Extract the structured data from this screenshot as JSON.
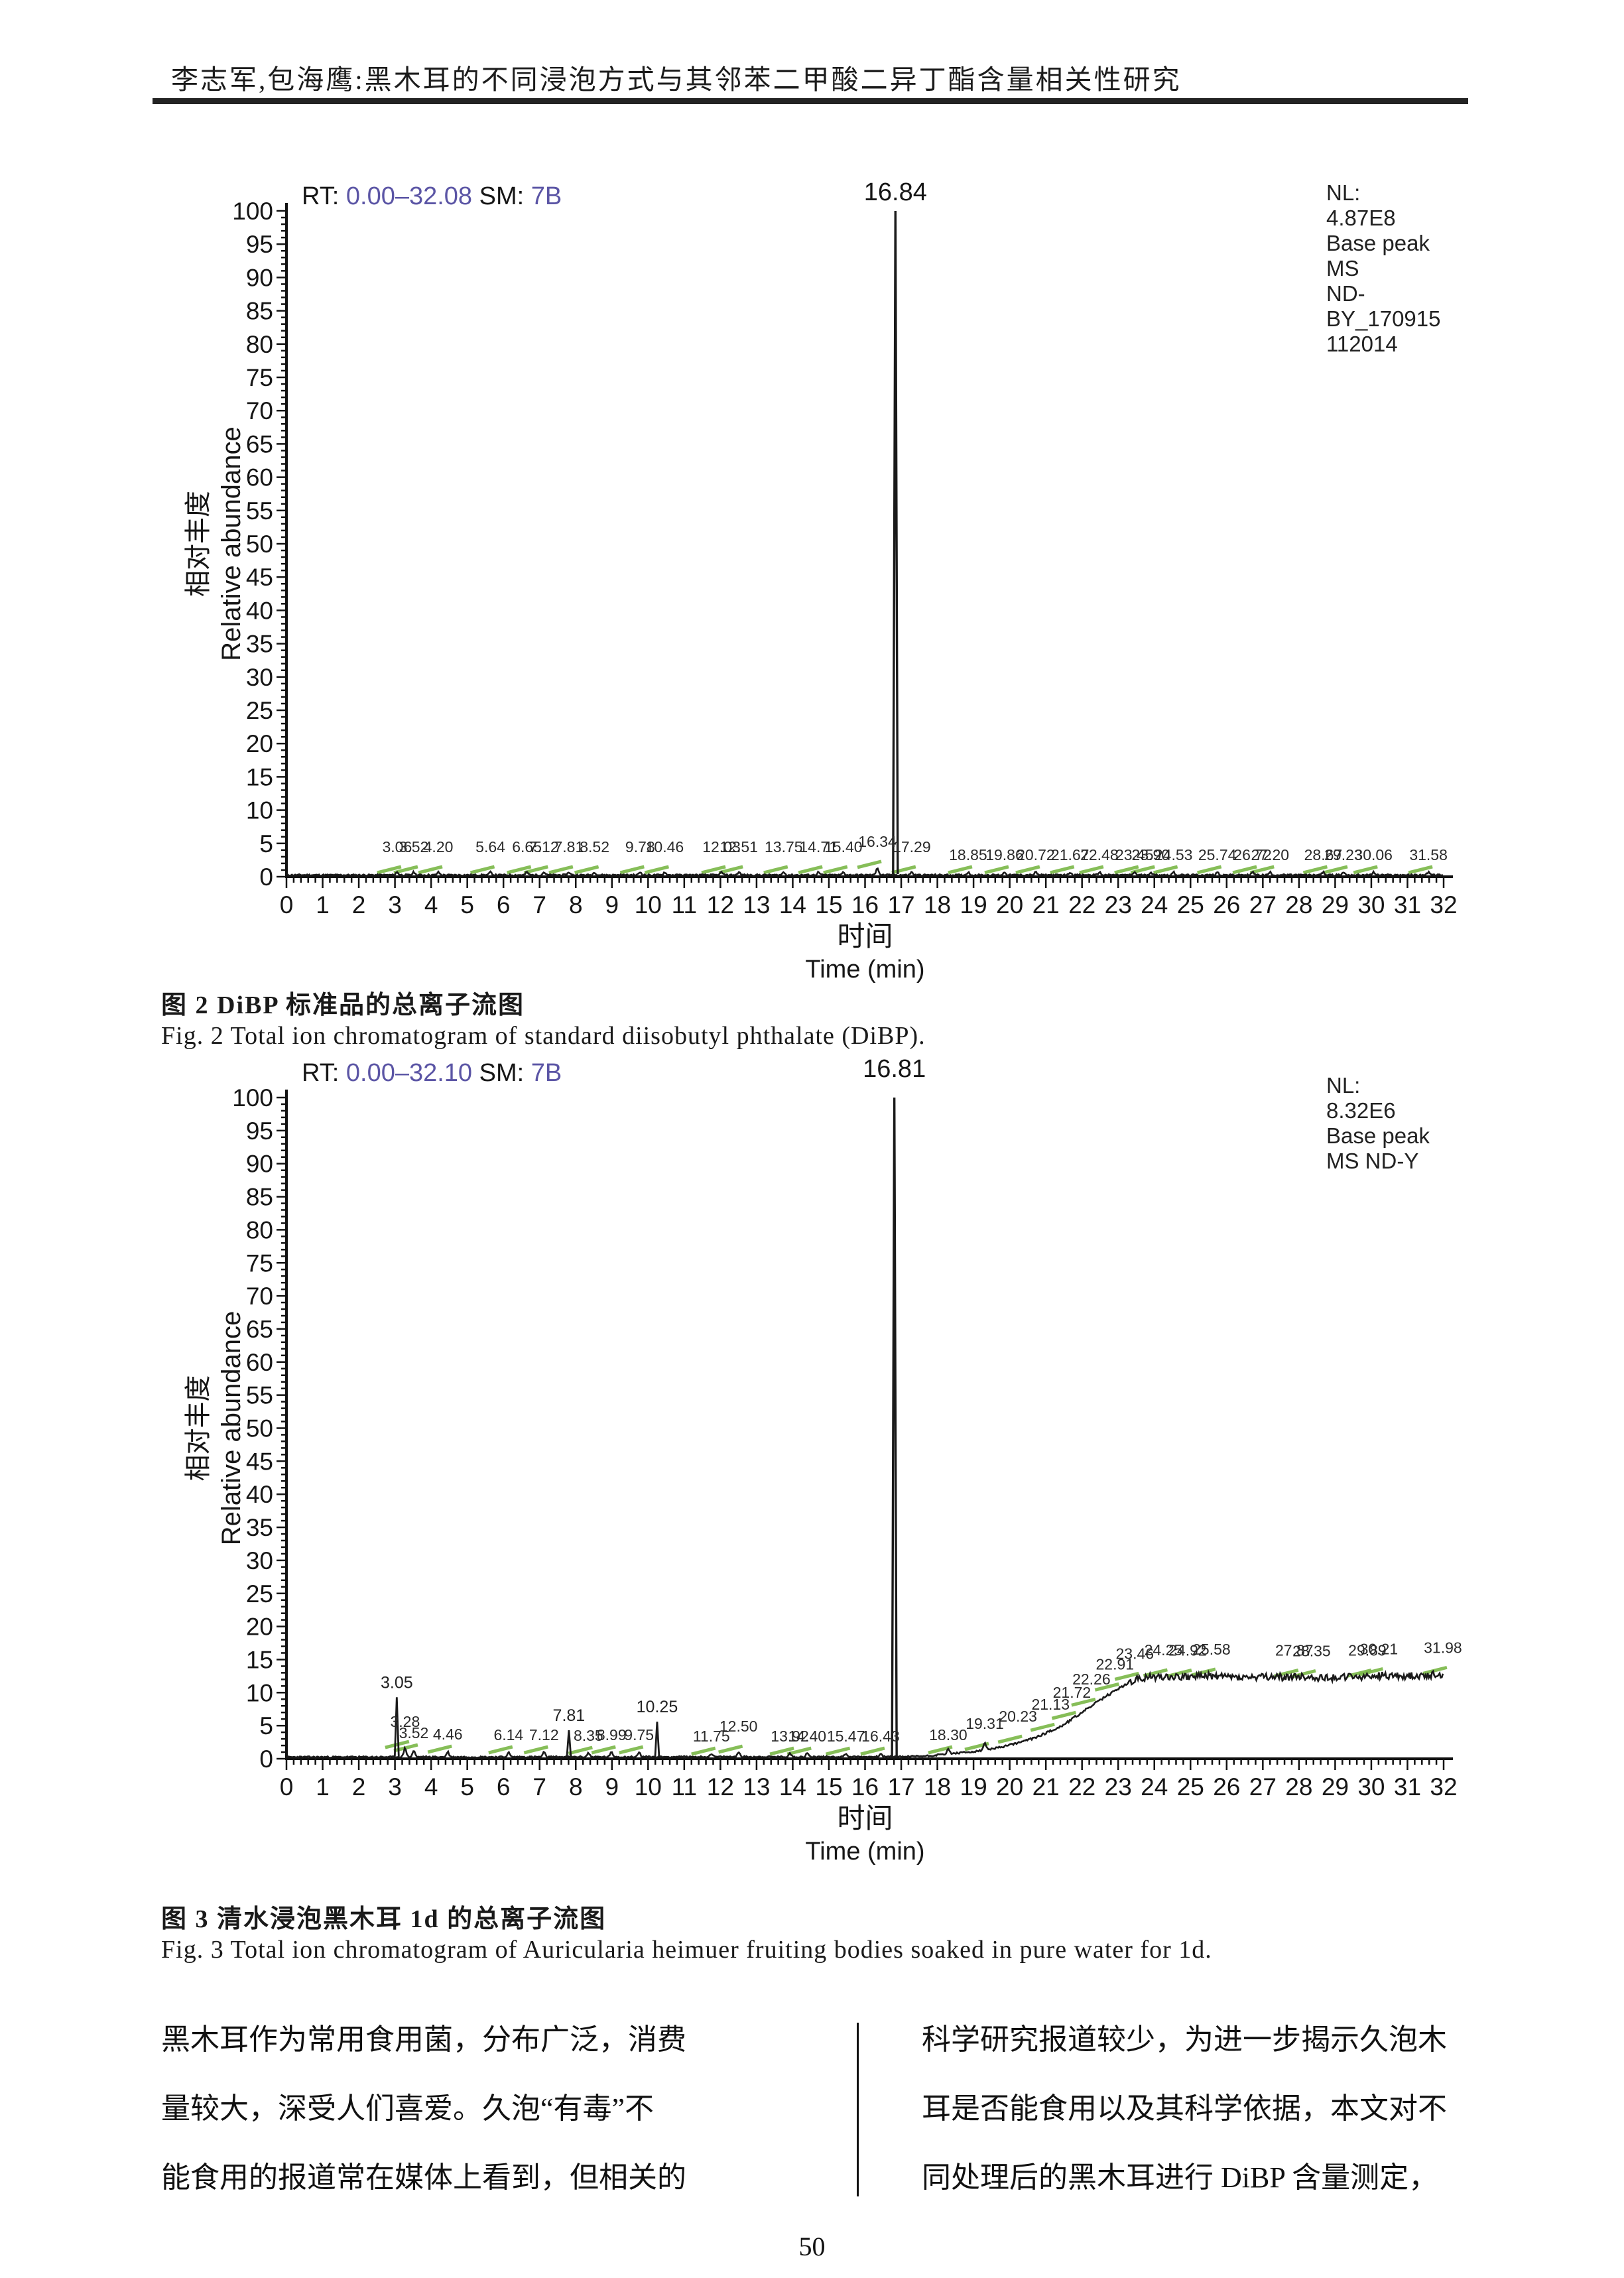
{
  "page": {
    "header": "李志军,包海鹰:黑木耳的不同浸泡方式与其邻苯二甲酸二异丁酯含量相关性研究",
    "page_number": "50"
  },
  "figure2": {
    "caption_cn": "图 2 DiBP 标准品的总离子流图",
    "caption_en": "Fig. 2 Total ion chromatogram of standard diisobutyl phthalate (DiBP)."
  },
  "figure3": {
    "caption_cn": "图 3 清水浸泡黑木耳 1d 的总离子流图",
    "caption_en": "Fig. 3 Total ion chromatogram of Auricularia heimuer fruiting bodies soaked in pure water for 1d."
  },
  "body_text": {
    "left_column": [
      "黑木耳作为常用食用菌，分布广泛，消费",
      "量较大，深受人们喜爱。久泡“有毒”不",
      "能食用的报道常在媒体上看到，但相关的"
    ],
    "right_column": [
      "科学研究报道较少，为进一步揭示久泡木",
      "耳是否能食用以及其科学依据，本文对不",
      "同处理后的黑木耳进行 DiBP 含量测定，"
    ]
  },
  "colors": {
    "rt_accent": "#5b55a5",
    "axis": "#111111",
    "trace": "#1a1a1a",
    "integration_mark": "#79b747"
  },
  "chart_data": [
    {
      "type": "line",
      "rt_label": "RT:",
      "rt_value": "0.00–32.08",
      "sm_label": "SM:",
      "sm_value": "7B",
      "nl_lines": [
        "NL:",
        "4.87E8",
        "Base peak",
        "MS",
        "ND-",
        "BY_170915",
        "112014"
      ],
      "main_peak": {
        "time": 16.84,
        "intensity": 100,
        "label": "16.84"
      },
      "labeled_peaks": [],
      "minor_peaks": [
        {
          "time": 3.06,
          "intensity": 0.5,
          "row": 0
        },
        {
          "time": 3.52,
          "intensity": 0.5,
          "row": 0
        },
        {
          "time": 4.2,
          "intensity": 0.5,
          "row": 0
        },
        {
          "time": 5.64,
          "intensity": 0.5,
          "row": 0
        },
        {
          "time": 6.65,
          "intensity": 0.5,
          "row": 0
        },
        {
          "time": 7.12,
          "intensity": 0.5,
          "row": 0
        },
        {
          "time": 7.81,
          "intensity": 0.5,
          "row": 0
        },
        {
          "time": 8.52,
          "intensity": 0.5,
          "row": 0
        },
        {
          "time": 9.78,
          "intensity": 0.5,
          "row": 0
        },
        {
          "time": 10.46,
          "intensity": 0.5,
          "row": 0
        },
        {
          "time": 12.03,
          "intensity": 0.5,
          "row": 0
        },
        {
          "time": 12.51,
          "intensity": 0.5,
          "row": 0
        },
        {
          "time": 13.75,
          "intensity": 0.5,
          "row": 0
        },
        {
          "time": 14.71,
          "intensity": 0.5,
          "row": 0
        },
        {
          "time": 15.4,
          "intensity": 0.5,
          "row": 0
        },
        {
          "time": 16.34,
          "intensity": 1.3,
          "row": 0
        },
        {
          "time": 17.29,
          "intensity": 0.5,
          "row": 0
        },
        {
          "time": 18.85,
          "intensity": 0.5,
          "row": 1
        },
        {
          "time": 19.86,
          "intensity": 0.5,
          "row": 1
        },
        {
          "time": 20.72,
          "intensity": 0.5,
          "row": 1
        },
        {
          "time": 21.67,
          "intensity": 0.5,
          "row": 1
        },
        {
          "time": 22.48,
          "intensity": 0.5,
          "row": 1
        },
        {
          "time": 23.45,
          "intensity": 0.5,
          "row": 1
        },
        {
          "time": 23.9,
          "intensity": 0.5,
          "row": 1
        },
        {
          "time": 24.53,
          "intensity": 0.5,
          "row": 1
        },
        {
          "time": 25.74,
          "intensity": 0.5,
          "row": 1
        },
        {
          "time": 26.72,
          "intensity": 0.5,
          "row": 1
        },
        {
          "time": 27.2,
          "intensity": 0.5,
          "row": 1
        },
        {
          "time": 28.67,
          "intensity": 0.5,
          "row": 1
        },
        {
          "time": 29.23,
          "intensity": 0.5,
          "row": 1
        },
        {
          "time": 30.06,
          "intensity": 0.5,
          "row": 1
        },
        {
          "time": 31.58,
          "intensity": 0.5,
          "row": 1
        }
      ],
      "profile": [
        [
          0,
          0.25
        ],
        [
          32,
          0.25
        ]
      ],
      "xlabel_cn": "时间",
      "xlabel_en": "Time (min)",
      "ylabel_cn": "相对丰度",
      "ylabel_en": "Relative abundance",
      "xlim": [
        0,
        32
      ],
      "ylim": [
        0,
        100
      ],
      "xtick_major": 1,
      "xtick_minor": 0.2,
      "ytick_major": 5,
      "ytick_minor": 1
    },
    {
      "type": "line",
      "rt_label": "RT:",
      "rt_value": "0.00–32.10",
      "sm_label": "SM:",
      "sm_value": "7B",
      "nl_lines": [
        "NL:",
        "8.32E6",
        "Base peak",
        "MS ND-Y"
      ],
      "main_peak": {
        "time": 16.81,
        "intensity": 100,
        "label": "16.81"
      },
      "labeled_peaks": [
        {
          "time": 3.05,
          "intensity": 9.3,
          "label": "3.05"
        },
        {
          "time": 7.81,
          "intensity": 4.3,
          "label": "7.81"
        },
        {
          "time": 10.25,
          "intensity": 5.6,
          "label": "10.25"
        }
      ],
      "minor_peaks": [
        {
          "time": 3.28,
          "intensity": 1.6,
          "row": 0
        },
        {
          "time": 3.52,
          "intensity": 1.1,
          "row": 1
        },
        {
          "time": 4.46,
          "intensity": 0.9,
          "row": 1
        },
        {
          "time": 6.14,
          "intensity": 0.8,
          "row": 1
        },
        {
          "time": 7.12,
          "intensity": 0.8,
          "row": 1
        },
        {
          "time": 8.35,
          "intensity": 0.7,
          "row": 1
        },
        {
          "time": 8.99,
          "intensity": 0.8,
          "row": 1
        },
        {
          "time": 9.75,
          "intensity": 0.8,
          "row": 1
        },
        {
          "time": 11.75,
          "intensity": 0.6,
          "row": 1
        },
        {
          "time": 12.5,
          "intensity": 0.9,
          "row": 0
        },
        {
          "time": 13.92,
          "intensity": 0.6,
          "row": 1
        },
        {
          "time": 14.4,
          "intensity": 0.6,
          "row": 1
        },
        {
          "time": 15.47,
          "intensity": 0.6,
          "row": 1
        },
        {
          "time": 16.43,
          "intensity": 0.6,
          "row": 1
        },
        {
          "time": 18.3,
          "intensity": 0.8,
          "row": 1
        },
        {
          "time": 19.31,
          "intensity": 1.3,
          "row": 0
        },
        {
          "time": 20.23,
          "intensity": 2.4,
          "row": 0
        },
        {
          "time": 21.13,
          "intensity": 4.2,
          "row": 0
        },
        {
          "time": 21.72,
          "intensity": 6.0,
          "row": 0
        },
        {
          "time": 22.26,
          "intensity": 8.0,
          "row": 0
        },
        {
          "time": 22.91,
          "intensity": 10.3,
          "row": 0
        },
        {
          "time": 23.46,
          "intensity": 11.9,
          "row": 0
        },
        {
          "time": 24.25,
          "intensity": 12.45,
          "row": 0
        },
        {
          "time": 24.92,
          "intensity": 12.4,
          "row": 0
        },
        {
          "time": 25.58,
          "intensity": 12.55,
          "row": 0
        },
        {
          "time": 27.87,
          "intensity": 12.4,
          "row": 0
        },
        {
          "time": 28.35,
          "intensity": 12.3,
          "row": 0
        },
        {
          "time": 29.89,
          "intensity": 12.4,
          "row": 0
        },
        {
          "time": 30.21,
          "intensity": 12.6,
          "row": 0
        },
        {
          "time": 31.98,
          "intensity": 12.8,
          "row": 0
        }
      ],
      "profile": [
        [
          0,
          0.25
        ],
        [
          17.0,
          0.3
        ],
        [
          17.8,
          0.45
        ],
        [
          18.3,
          0.75
        ],
        [
          19.0,
          1.05
        ],
        [
          19.31,
          1.3
        ],
        [
          19.8,
          1.8
        ],
        [
          20.23,
          2.4
        ],
        [
          20.7,
          3.2
        ],
        [
          21.13,
          4.2
        ],
        [
          21.45,
          5.0
        ],
        [
          21.72,
          6.0
        ],
        [
          22.0,
          7.0
        ],
        [
          22.26,
          8.0
        ],
        [
          22.6,
          9.2
        ],
        [
          22.91,
          10.3
        ],
        [
          23.2,
          11.2
        ],
        [
          23.46,
          11.9
        ],
        [
          23.8,
          12.3
        ],
        [
          24.25,
          12.45
        ],
        [
          24.92,
          12.4
        ],
        [
          25.58,
          12.55
        ],
        [
          26.5,
          12.25
        ],
        [
          27.87,
          12.4
        ],
        [
          28.35,
          12.3
        ],
        [
          29.0,
          12.3
        ],
        [
          29.89,
          12.4
        ],
        [
          30.21,
          12.6
        ],
        [
          31.0,
          12.5
        ],
        [
          31.98,
          12.8
        ],
        [
          32,
          12.7
        ]
      ],
      "xlabel_cn": "时间",
      "xlabel_en": "Time (min)",
      "ylabel_cn": "相对丰度",
      "ylabel_en": "Relative abundance",
      "xlim": [
        0,
        32
      ],
      "ylim": [
        0,
        100
      ],
      "xtick_major": 1,
      "xtick_minor": 0.2,
      "ytick_major": 5,
      "ytick_minor": 1
    }
  ]
}
